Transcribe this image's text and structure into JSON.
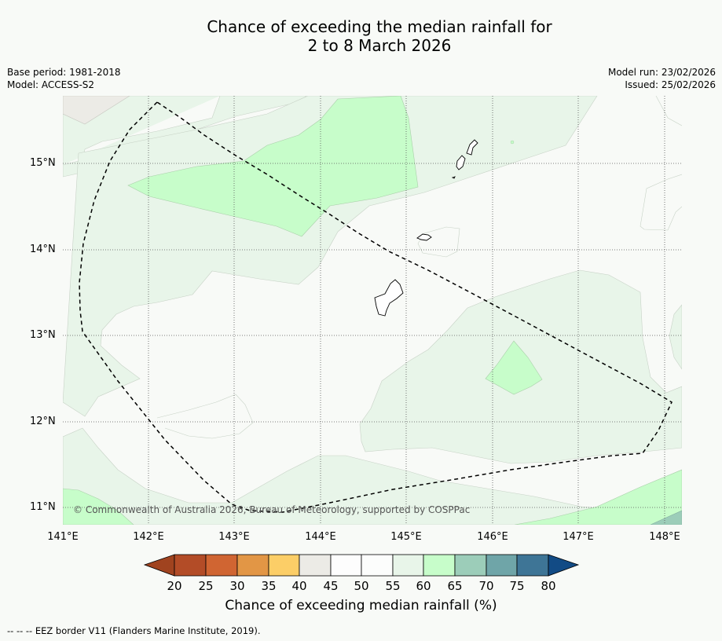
{
  "title_line1": "Chance of exceeding the median rainfall for",
  "title_line2": "2 to 8 March 2026",
  "base_period": "Base period: 1981-2018",
  "model": "Model: ACCESS-S2",
  "model_run": "Model run: 23/02/2026",
  "issued": "Issued: 25/02/2026",
  "copyright": "© Commonwealth of Australia 2026, Bureau of Meteorology, supported by COSPPac",
  "footnote": "--  --  -- EEZ border V11 (Flanders Marine Institute, 2019).",
  "axes": {
    "lat_labels": [
      "15°N",
      "14°N",
      "13°N",
      "12°N",
      "11°N"
    ],
    "lon_labels": [
      "141°E",
      "142°E",
      "143°E",
      "144°E",
      "145°E",
      "146°E",
      "147°E",
      "148°E"
    ],
    "lon_range": [
      141.0,
      148.2
    ],
    "lat_range": [
      10.8,
      15.8
    ]
  },
  "colorbar": {
    "label": "Chance of exceeding median rainfall (%)",
    "ticks": [
      "20",
      "25",
      "30",
      "35",
      "40",
      "45",
      "50",
      "55",
      "60",
      "65",
      "70",
      "75",
      "80"
    ],
    "colors": [
      "#a0431f",
      "#b34c27",
      "#d06532",
      "#e29645",
      "#fcce67",
      "#ecebe6",
      "#fdfdfd",
      "#fcfdfc",
      "#e8f5e9",
      "#c7fdca",
      "#9ccdb9",
      "#6fa5a8",
      "#3e7596",
      "#124b85"
    ]
  },
  "legend": {
    "palette": {
      "band_45_50": "#ecebe6",
      "band_50_55": "#f8faf7",
      "band_55_60": "#e8f5e9",
      "band_60_65": "#c7fdca",
      "band_65_70": "#9ccdb9"
    }
  }
}
